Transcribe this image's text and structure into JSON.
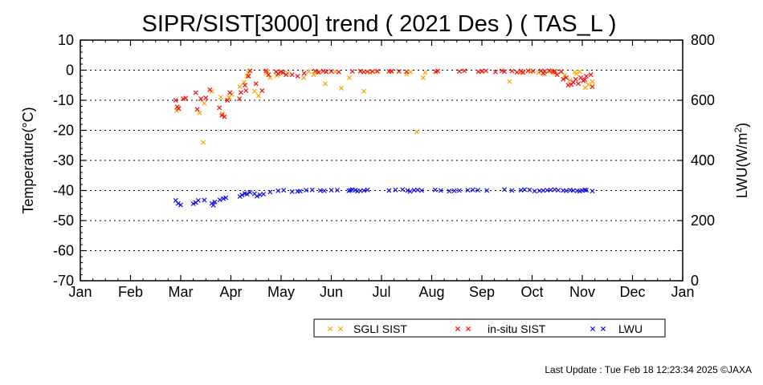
{
  "colors": {
    "sgli": "#ffa500",
    "insitu": "#ee1111",
    "lwu": "#1111ee",
    "grid": "#000000"
  },
  "footer": {
    "text": "Last Update : Tue Feb 18 12:23:34 2025  ©JAXA"
  },
  "chart_data": {
    "type": "scatter",
    "title": "SIPR/SIST[3000] trend ( 2021 Des ) ( TAS_L )",
    "ylabel": "Temperature(°C)",
    "y2label_main": "LWU(W/m",
    "y2label_sup": "2",
    "y2label_end": ")",
    "ylim": [
      -70,
      10
    ],
    "y2lim": [
      0,
      800
    ],
    "xlim": [
      0,
      12
    ],
    "yticks": [
      10,
      0,
      -10,
      -20,
      -30,
      -40,
      -50,
      -60,
      -70
    ],
    "y2ticks": [
      800,
      600,
      400,
      200,
      0
    ],
    "xticks": [
      "Jan",
      "Feb",
      "Mar",
      "Apr",
      "May",
      "Jun",
      "Jul",
      "Aug",
      "Sep",
      "Oct",
      "Nov",
      "Dec",
      "Jan"
    ],
    "grid": "horizontal-dotted",
    "legend_position": "bottom-right",
    "series": [
      {
        "name": "SGLI SIST",
        "color": "#ffa500",
        "axis": "left",
        "x": [
          1.92,
          1.95,
          2.38,
          2.45,
          2.47,
          2.62,
          2.8,
          2.83,
          2.96,
          3.02,
          3.18,
          3.26,
          3.32,
          3.35,
          3.38,
          3.47,
          3.55,
          3.7,
          3.73,
          3.78,
          3.92,
          3.98,
          4.13,
          4.45,
          4.55,
          4.65,
          4.72,
          4.88,
          5.08,
          5.2,
          5.36,
          5.58,
          5.65,
          5.77,
          5.9,
          6.2,
          6.5,
          6.58,
          6.7,
          6.83,
          6.87,
          8.0,
          8.55,
          8.8,
          8.97,
          9.13,
          9.25,
          9.37,
          9.45,
          9.58,
          9.65,
          9.75,
          9.85,
          9.88,
          9.95,
          10.06,
          10.12,
          10.2
        ],
        "y": [
          -13.5,
          -12.5,
          -14.2,
          -24,
          -11,
          -7,
          -9,
          -14.5,
          -9,
          -8,
          -5.5,
          -4,
          -2,
          -1,
          -0.3,
          -7,
          -8.5,
          -1,
          -0.5,
          -2.5,
          -1.8,
          -0.8,
          -1,
          -2.5,
          -0.5,
          -1.5,
          -0.7,
          -4.5,
          -0.5,
          -6,
          -2.5,
          -0.4,
          -7,
          -0.8,
          -0.5,
          -0.5,
          -1.3,
          -0.6,
          -20.5,
          -2.5,
          -0.8,
          -0.5,
          -3.8,
          -0.6,
          -0.5,
          -0.8,
          -1.3,
          -0.3,
          -0.9,
          -0.4,
          -1.7,
          -3.4,
          -0.7,
          -1.2,
          -0.5,
          -5.8,
          -4.8,
          -3.8
        ]
      },
      {
        "name": "in-situ SIST",
        "color": "#ee1111",
        "axis": "left",
        "x": [
          1.9,
          1.93,
          1.96,
          2.05,
          2.1,
          2.3,
          2.33,
          2.4,
          2.5,
          2.58,
          2.77,
          2.82,
          2.87,
          2.93,
          2.98,
          3.17,
          3.2,
          3.28,
          3.3,
          3.35,
          3.38,
          3.5,
          3.62,
          3.7,
          3.75,
          3.9,
          3.94,
          4.0,
          4.04,
          4.1,
          4.22,
          4.33,
          4.46,
          4.68,
          4.75,
          4.84,
          4.9,
          5.0,
          5.15,
          5.42,
          5.58,
          5.65,
          5.72,
          5.82,
          5.92,
          6.15,
          6.2,
          6.35,
          6.5,
          7.08,
          7.12,
          7.55,
          7.65,
          7.93,
          8.0,
          8.08,
          8.27,
          8.4,
          8.45,
          8.6,
          8.7,
          8.78,
          8.82,
          8.92,
          9.02,
          9.18,
          9.22,
          9.25,
          9.34,
          9.42,
          9.45,
          9.5,
          9.58,
          9.62,
          9.68,
          9.72,
          9.78,
          9.82,
          9.87,
          9.92,
          9.97,
          10.02,
          10.05,
          10.08,
          10.17,
          10.2
        ],
        "y": [
          -10,
          -12.2,
          -12.8,
          -9.5,
          -9.3,
          -7.5,
          -13,
          -9.5,
          -9.2,
          -6.5,
          -12.5,
          -15,
          -15.5,
          -10,
          -7.5,
          -9.5,
          -7.4,
          -5,
          -6.8,
          -2,
          -0.2,
          -4.5,
          -6.8,
          -0.2,
          -1.5,
          -0.5,
          -1.2,
          -0.5,
          -0.8,
          -1.5,
          -1.5,
          -2,
          -1,
          -0.3,
          -0.7,
          -0.3,
          -0.6,
          -0.4,
          -0.6,
          -0.4,
          -0.3,
          -0.6,
          -0.5,
          -0.4,
          -0.3,
          -0.4,
          -0.3,
          -0.4,
          -0.5,
          -0.5,
          -0.3,
          -0.4,
          -0.2,
          -0.5,
          -0.3,
          -0.2,
          -0.6,
          -0.2,
          -0.5,
          -0.3,
          -0.7,
          -0.3,
          -0.8,
          -0.2,
          -0.3,
          -0.2,
          -1,
          -0.4,
          -0.2,
          -0.6,
          -0.3,
          -1.5,
          -0.5,
          -3,
          -2.5,
          -5,
          -4.8,
          -4,
          -3,
          -4.5,
          -2.5,
          -3.5,
          -3.2,
          -2,
          -1.5,
          -5.5
        ]
      },
      {
        "name": "LWU",
        "color": "#1111ee",
        "axis": "right",
        "x": [
          1.9,
          1.95,
          2.0,
          2.25,
          2.3,
          2.35,
          2.47,
          2.62,
          2.65,
          2.68,
          2.78,
          2.85,
          2.9,
          3.18,
          3.22,
          3.28,
          3.32,
          3.38,
          3.47,
          3.52,
          3.58,
          3.65,
          3.78,
          3.94,
          4.05,
          4.22,
          4.33,
          4.38,
          4.5,
          4.62,
          4.78,
          4.86,
          5.0,
          5.12,
          5.35,
          5.38,
          5.42,
          5.48,
          5.52,
          5.58,
          5.65,
          5.72,
          6.15,
          6.28,
          6.42,
          6.52,
          6.57,
          6.65,
          6.72,
          6.8,
          7.07,
          7.18,
          7.35,
          7.45,
          7.55,
          7.72,
          7.82,
          7.92,
          8.1,
          8.45,
          8.6,
          8.78,
          8.85,
          8.95,
          9.05,
          9.15,
          9.22,
          9.3,
          9.37,
          9.45,
          9.52,
          9.62,
          9.68,
          9.76,
          9.82,
          9.9,
          9.95,
          10.0,
          10.05,
          10.08,
          10.2
        ],
        "y": [
          267,
          257,
          252,
          256,
          260,
          267,
          268,
          257,
          251,
          262,
          269,
          273,
          276,
          280,
          285,
          290,
          288,
          294,
          289,
          281,
          286,
          288,
          295,
          299,
          301,
          296,
          297,
          298,
          301,
          302,
          300,
          299,
          301,
          301,
          299,
          301,
          303,
          301,
          298,
          299,
          300,
          302,
          300,
          302,
          303,
          300,
          297,
          301,
          302,
          300,
          302,
          300,
          298,
          299,
          300,
          301,
          302,
          301,
          300,
          303,
          300,
          301,
          303,
          302,
          298,
          299,
          300,
          301,
          302,
          303,
          301,
          300,
          299,
          301,
          300,
          299,
          298,
          300,
          302,
          301,
          298
        ]
      }
    ]
  }
}
